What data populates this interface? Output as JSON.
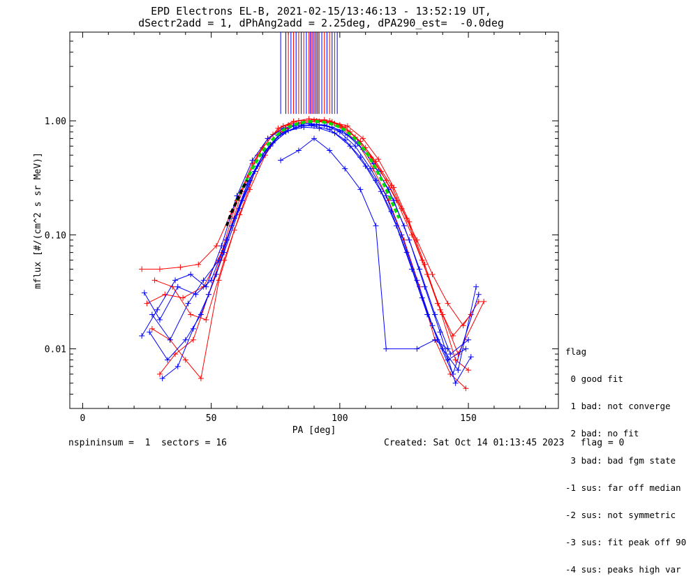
{
  "chart_data": {
    "type": "line",
    "title": "EPD Electrons EL-B, 2021-02-15/13:46:13 - 13:52:19 UT,",
    "subtitle": "dSectr2add = 1, dPhAng2add = 2.25deg, dPA290_est=  -0.0deg",
    "xlabel": "PA [deg]",
    "ylabel": "mflux [#/(cm^2 s sr MeV)]",
    "xlim": [
      -5,
      185
    ],
    "ylim": [
      0.003,
      6
    ],
    "yscale": "log",
    "x_ticks": [
      0,
      50,
      100,
      150
    ],
    "y_ticks": [
      {
        "value": 0.01,
        "label": "0.01"
      },
      {
        "value": 0.1,
        "label": "0.10"
      },
      {
        "value": 1.0,
        "label": "1.00"
      }
    ],
    "grid": false,
    "series": [
      {
        "color": "#ff0000",
        "x": [
          23,
          30,
          38,
          45,
          52,
          58,
          64,
          70,
          76,
          82,
          88,
          94,
          100,
          106,
          112,
          118,
          124,
          130,
          136,
          142,
          148,
          154
        ],
        "y": [
          0.05,
          0.05,
          0.052,
          0.055,
          0.08,
          0.16,
          0.32,
          0.58,
          0.86,
          0.99,
          1.04,
          1.02,
          0.92,
          0.72,
          0.48,
          0.3,
          0.17,
          0.09,
          0.045,
          0.025,
          0.016,
          0.026
        ]
      },
      {
        "color": "#ff0000",
        "x": [
          27,
          34,
          40,
          46,
          53,
          59,
          65,
          71,
          77,
          83,
          89,
          95,
          101,
          107,
          113,
          119,
          125,
          131,
          137,
          143,
          149
        ],
        "y": [
          0.015,
          0.012,
          0.008,
          0.0055,
          0.04,
          0.11,
          0.25,
          0.5,
          0.8,
          0.95,
          0.99,
          0.97,
          0.86,
          0.64,
          0.38,
          0.2,
          0.09,
          0.035,
          0.012,
          0.006,
          0.0045
        ]
      },
      {
        "color": "#ff0000",
        "x": [
          25,
          32,
          39,
          47,
          54,
          60,
          66,
          72,
          78,
          84,
          90,
          96,
          102,
          108,
          114,
          120,
          126,
          132,
          138,
          144,
          151
        ],
        "y": [
          0.025,
          0.03,
          0.028,
          0.035,
          0.07,
          0.2,
          0.42,
          0.7,
          0.9,
          1.0,
          1.02,
          1.0,
          0.88,
          0.66,
          0.44,
          0.27,
          0.14,
          0.06,
          0.025,
          0.013,
          0.02
        ]
      },
      {
        "color": "#ff0000",
        "x": [
          30,
          36,
          43,
          49,
          56,
          62,
          68,
          74,
          80,
          86,
          92,
          98,
          104,
          110,
          116,
          122,
          128,
          134,
          140,
          146,
          156
        ],
        "y": [
          0.006,
          0.009,
          0.012,
          0.03,
          0.09,
          0.24,
          0.5,
          0.76,
          0.92,
          0.98,
          0.99,
          0.95,
          0.8,
          0.58,
          0.36,
          0.2,
          0.1,
          0.045,
          0.02,
          0.009,
          0.026
        ]
      },
      {
        "color": "#ff0000",
        "x": [
          28,
          35,
          42,
          48,
          55,
          61,
          67,
          73,
          79,
          85,
          91,
          97,
          103,
          109,
          115,
          121,
          127,
          133,
          139,
          145,
          150
        ],
        "y": [
          0.04,
          0.035,
          0.02,
          0.018,
          0.06,
          0.15,
          0.36,
          0.62,
          0.85,
          0.96,
          1.0,
          0.98,
          0.9,
          0.7,
          0.46,
          0.26,
          0.13,
          0.055,
          0.022,
          0.008,
          0.0065
        ]
      },
      {
        "color": "#0000ff",
        "x": [
          24,
          30,
          37,
          44,
          50,
          56,
          62,
          68,
          74,
          80,
          86,
          92,
          98,
          104,
          110,
          116,
          122,
          128,
          134,
          140,
          146,
          153
        ],
        "y": [
          0.031,
          0.018,
          0.035,
          0.03,
          0.04,
          0.09,
          0.2,
          0.4,
          0.64,
          0.82,
          0.88,
          0.86,
          0.78,
          0.6,
          0.4,
          0.24,
          0.12,
          0.05,
          0.02,
          0.01,
          0.0065,
          0.035
        ]
      },
      {
        "color": "#0000ff",
        "x": [
          26,
          33,
          40,
          46,
          52,
          58,
          64,
          70,
          76,
          82,
          88,
          94,
          100,
          106,
          112,
          118,
          124,
          130,
          136,
          142,
          149
        ],
        "y": [
          0.014,
          0.008,
          0.012,
          0.02,
          0.045,
          0.12,
          0.28,
          0.5,
          0.74,
          0.9,
          0.95,
          0.92,
          0.8,
          0.6,
          0.38,
          0.22,
          0.1,
          0.04,
          0.016,
          0.008,
          0.01
        ]
      },
      {
        "color": "#0000ff",
        "x": [
          31,
          37,
          43,
          49,
          55,
          61,
          67,
          73,
          79,
          85,
          91,
          97,
          103,
          109,
          115,
          121,
          127,
          133,
          139,
          145,
          151
        ],
        "y": [
          0.0055,
          0.007,
          0.015,
          0.03,
          0.07,
          0.17,
          0.36,
          0.6,
          0.8,
          0.9,
          0.92,
          0.88,
          0.75,
          0.56,
          0.36,
          0.2,
          0.09,
          0.035,
          0.014,
          0.005,
          0.0085
        ]
      },
      {
        "color": "#0000ff",
        "x": [
          23,
          29,
          36,
          42,
          48,
          54,
          60,
          66,
          72,
          78,
          84,
          90,
          96,
          102,
          108,
          114,
          120,
          126,
          132,
          138,
          144,
          154
        ],
        "y": [
          0.013,
          0.022,
          0.04,
          0.045,
          0.035,
          0.08,
          0.22,
          0.45,
          0.7,
          0.86,
          0.92,
          0.9,
          0.84,
          0.68,
          0.48,
          0.3,
          0.16,
          0.07,
          0.028,
          0.012,
          0.006,
          0.03
        ]
      },
      {
        "color": "#0000ff",
        "x": [
          27,
          34,
          41,
          47,
          53,
          59,
          65,
          71,
          77,
          83,
          89,
          95,
          101,
          107,
          113,
          119,
          125,
          131,
          137,
          143,
          150
        ],
        "y": [
          0.02,
          0.012,
          0.025,
          0.04,
          0.06,
          0.14,
          0.3,
          0.55,
          0.76,
          0.88,
          0.93,
          0.9,
          0.82,
          0.64,
          0.42,
          0.25,
          0.12,
          0.05,
          0.02,
          0.009,
          0.012
        ]
      },
      {
        "color": "#0000ff",
        "x": [
          77,
          84,
          90,
          96,
          102,
          108,
          114,
          118,
          130,
          137,
          142
        ],
        "y": [
          0.45,
          0.55,
          0.7,
          0.55,
          0.38,
          0.25,
          0.12,
          0.01,
          0.01,
          0.012,
          0.01
        ]
      },
      {
        "color": "#00dd00",
        "style": "dashed",
        "x": [
          60,
          63,
          66,
          69,
          72,
          75,
          78,
          81,
          84,
          87,
          90,
          93,
          96,
          99,
          102,
          105,
          108,
          111,
          114,
          117,
          120,
          123
        ],
        "y": [
          0.2,
          0.28,
          0.38,
          0.5,
          0.62,
          0.73,
          0.83,
          0.9,
          0.95,
          0.98,
          0.99,
          0.98,
          0.95,
          0.9,
          0.83,
          0.73,
          0.62,
          0.5,
          0.38,
          0.28,
          0.2,
          0.14
        ]
      },
      {
        "color": "#000000",
        "style": "dashed",
        "x": [
          56,
          58,
          60,
          62,
          64
        ],
        "y": [
          0.12,
          0.16,
          0.2,
          0.25,
          0.3
        ]
      }
    ],
    "spike_lines": [
      {
        "x": 77,
        "color": "#0000ff"
      },
      {
        "x": 79,
        "color": "#0000ff"
      },
      {
        "x": 80,
        "color": "#ff0000"
      },
      {
        "x": 81,
        "color": "#0000ff"
      },
      {
        "x": 82,
        "color": "#ff0000"
      },
      {
        "x": 83,
        "color": "#0000ff"
      },
      {
        "x": 84,
        "color": "#ff0000"
      },
      {
        "x": 85,
        "color": "#0000ff"
      },
      {
        "x": 86,
        "color": "#ff0000"
      },
      {
        "x": 87,
        "color": "#0000ff"
      },
      {
        "x": 88,
        "color": "#ff0000"
      },
      {
        "x": 88.5,
        "color": "#0000ff"
      },
      {
        "x": 89,
        "color": "#ff0000"
      },
      {
        "x": 89.5,
        "color": "#0000ff"
      },
      {
        "x": 90,
        "color": "#ff0000"
      },
      {
        "x": 90.5,
        "color": "#0000ff"
      },
      {
        "x": 91,
        "color": "#ff0000"
      },
      {
        "x": 91.5,
        "color": "#0000ff"
      },
      {
        "x": 92,
        "color": "#ff0000"
      },
      {
        "x": 93,
        "color": "#0000ff"
      },
      {
        "x": 94,
        "color": "#ff0000"
      },
      {
        "x": 95,
        "color": "#0000ff"
      },
      {
        "x": 96,
        "color": "#ff0000"
      },
      {
        "x": 97,
        "color": "#0000ff"
      },
      {
        "x": 98,
        "color": "#ff0000"
      },
      {
        "x": 99,
        "color": "#0000ff"
      }
    ],
    "spike_range": [
      1.15,
      6
    ]
  },
  "legend": {
    "title": "flag",
    "items": [
      " 0 good fit",
      " 1 bad: not converge",
      " 2 bad: no fit",
      " 3 bad: bad fgm state",
      "-1 sus: far off median",
      "-2 sus: not symmetric",
      "-3 sus: fit peak off 90",
      "-4 sus: peaks high var"
    ]
  },
  "footer": {
    "left": "nspininsum =  1  sectors = 16",
    "right": "Created: Sat Oct 14 01:13:45 2023   flag = 0"
  }
}
